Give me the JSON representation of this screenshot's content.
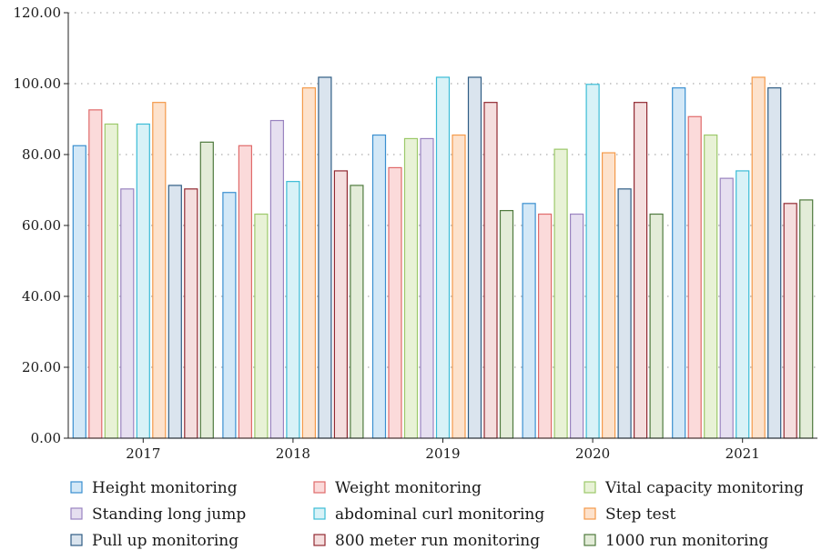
{
  "chart_data": {
    "type": "bar",
    "title": "",
    "xlabel": "",
    "ylabel": "",
    "categories": [
      "2017",
      "2018",
      "2019",
      "2020",
      "2021"
    ],
    "ylim": [
      0,
      120
    ],
    "yticks": [
      "0.00",
      "20.00",
      "40.00",
      "60.00",
      "80.00",
      "100.00",
      "120.00"
    ],
    "grid": "horizontal dotted",
    "legend_position": "bottom",
    "series": [
      {
        "name": "Height monitoring",
        "fill": "#d3e8f7",
        "stroke": "#3a8fd0",
        "values": [
          82.5,
          69.3,
          85.5,
          66.2,
          98.8
        ]
      },
      {
        "name": "Weight monitoring",
        "fill": "#fbdada",
        "stroke": "#e06a6a",
        "values": [
          92.6,
          82.5,
          76.3,
          63.2,
          90.7
        ]
      },
      {
        "name": "Vital capacity monitoring",
        "fill": "#e8f2d6",
        "stroke": "#9cc96a",
        "values": [
          88.6,
          63.2,
          84.5,
          81.5,
          85.5
        ]
      },
      {
        "name": "Standing long jump",
        "fill": "#e6dff0",
        "stroke": "#9a84c0",
        "values": [
          70.3,
          89.6,
          84.5,
          63.2,
          73.3
        ]
      },
      {
        "name": "abdominal curl monitoring",
        "fill": "#d8f2f7",
        "stroke": "#3bbcd6",
        "values": [
          88.6,
          72.4,
          101.8,
          99.8,
          75.4
        ]
      },
      {
        "name": "Step test",
        "fill": "#fde2cc",
        "stroke": "#f49a4a",
        "values": [
          94.7,
          98.8,
          85.5,
          80.5,
          101.8
        ]
      },
      {
        "name": "Pull up monitoring",
        "fill": "#dae4ee",
        "stroke": "#2f5c84",
        "values": [
          71.3,
          101.8,
          101.8,
          70.3,
          98.8
        ]
      },
      {
        "name": "800 meter run monitoring",
        "fill": "#f5dede",
        "stroke": "#922a32",
        "values": [
          70.3,
          75.4,
          94.7,
          94.7,
          66.2
        ]
      },
      {
        "name": "1000 run monitoring",
        "fill": "#e3ecd8",
        "stroke": "#4f7a3e",
        "values": [
          83.5,
          71.3,
          64.2,
          63.2,
          67.2
        ]
      }
    ]
  }
}
